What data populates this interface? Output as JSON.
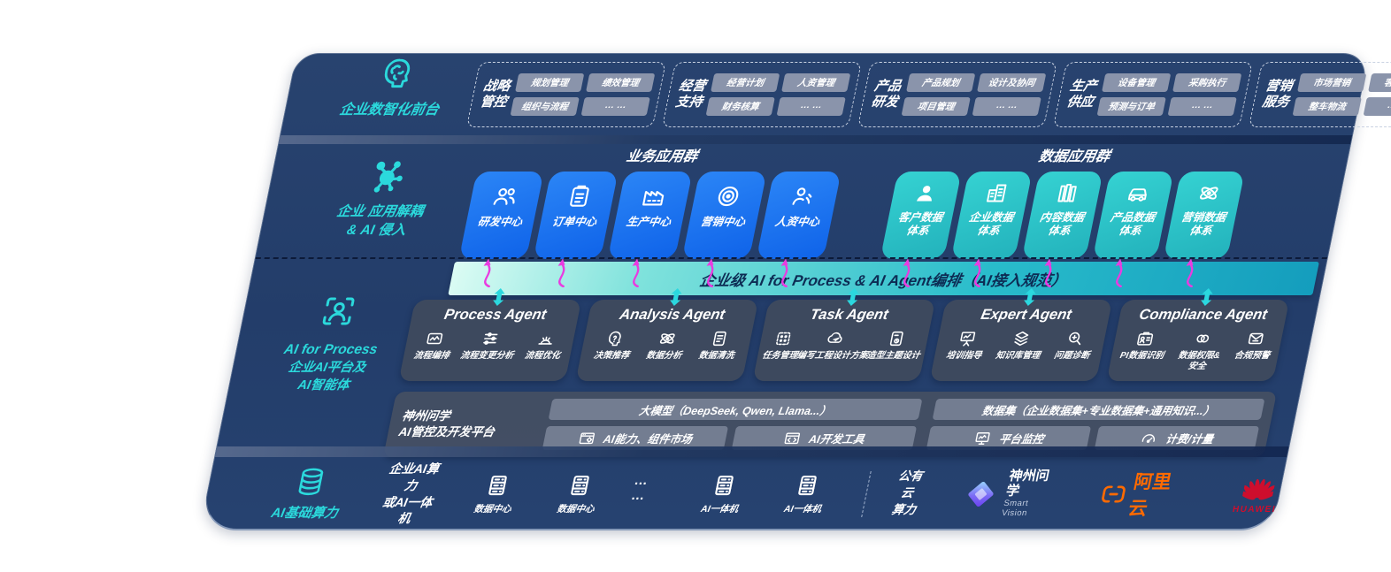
{
  "colors": {
    "panel_navy": "#24406C",
    "accent_teal": "#2BD9DC",
    "tile_blue": "#1B79F3",
    "tile_teal": "#2EC8CA",
    "magenta_arrow": "#E93CE0",
    "bar_gradient_from": "#DCFCF4",
    "bar_gradient_to": "#149DBD",
    "chip_gray": "#8A94AB",
    "aliyun_orange": "#FF6A00",
    "huawei_red": "#CE0E2D"
  },
  "front_office": {
    "label": "企业数智化前台",
    "groups": [
      {
        "title": [
          "战略",
          "管控"
        ],
        "chips": [
          "规划管理",
          "绩效管理",
          "组织与流程",
          "… …"
        ]
      },
      {
        "title": [
          "经营",
          "支持"
        ],
        "chips": [
          "经营计划",
          "人资管理",
          "财务核算",
          "… …"
        ]
      },
      {
        "title": [
          "产品",
          "研发"
        ],
        "chips": [
          "产品规划",
          "设计及协同",
          "项目管理",
          "… …"
        ]
      },
      {
        "title": [
          "生产",
          "供应"
        ],
        "chips": [
          "设备管理",
          "采购执行",
          "预测与订单",
          "… …"
        ]
      },
      {
        "title": [
          "营销",
          "服务"
        ],
        "chips": [
          "市场营销",
          "客户关系",
          "整车物流",
          "… …"
        ]
      }
    ]
  },
  "app_layer": {
    "label_lines": "企业 应用解耦\n& AI 侵入",
    "business": {
      "title": "业务应用群",
      "tiles": [
        {
          "label": "研发中心",
          "icon": "people-icon"
        },
        {
          "label": "订单中心",
          "icon": "clipboard-icon"
        },
        {
          "label": "生产中心",
          "icon": "factory-icon"
        },
        {
          "label": "营销中心",
          "icon": "target-icon"
        },
        {
          "label": "人资中心",
          "icon": "person-wave-icon"
        }
      ]
    },
    "data": {
      "title": "数据应用群",
      "tiles": [
        {
          "label": "客户数据\n体系",
          "icon": "user-icon"
        },
        {
          "label": "企业数据\n体系",
          "icon": "building-icon"
        },
        {
          "label": "内容数据\n体系",
          "icon": "books-icon"
        },
        {
          "label": "产品数据\n体系",
          "icon": "car-icon"
        },
        {
          "label": "营销数据\n体系",
          "icon": "atom-icon"
        }
      ]
    }
  },
  "orchestration_bar": "企业级 AI for Process & AI Agent编排（AI接入规范）",
  "process_layer": {
    "label_en": "AI for Process",
    "label_cn": "企业AI平台及\nAI智能体",
    "agents": [
      {
        "title": "Process Agent",
        "items": [
          {
            "label": "流程编排",
            "icon": "workflow-icon"
          },
          {
            "label": "流程变更分析",
            "icon": "sliders-icon"
          },
          {
            "label": "流程优化",
            "icon": "optimize-icon"
          }
        ]
      },
      {
        "title": "Analysis Agent",
        "items": [
          {
            "label": "决策推荐",
            "icon": "decision-head-icon"
          },
          {
            "label": "数据分析",
            "icon": "atom-icon"
          },
          {
            "label": "数据清洗",
            "icon": "doc-clean-icon"
          }
        ]
      },
      {
        "title": "Task Agent",
        "items": [
          {
            "label": "任务管理",
            "icon": "task-grid-icon"
          },
          {
            "label": "编写工程设计方案",
            "icon": "cloud-edit-icon"
          },
          {
            "label": "造型主题设计",
            "icon": "tablet-design-icon"
          }
        ]
      },
      {
        "title": "Expert Agent",
        "items": [
          {
            "label": "培训指导",
            "icon": "training-icon"
          },
          {
            "label": "知识库管理",
            "icon": "layers-icon"
          },
          {
            "label": "问题诊断",
            "icon": "diagnose-icon"
          }
        ]
      },
      {
        "title": "Compliance Agent",
        "items": [
          {
            "label": "PI数据识别",
            "icon": "id-card-icon"
          },
          {
            "label": "数据权限&\n安全",
            "icon": "link-icon",
            "wrap": true
          },
          {
            "label": "合规预警",
            "icon": "mail-alert-icon"
          }
        ]
      }
    ]
  },
  "platform": {
    "label_lines": "神州问学\nAI管控及开发平台",
    "model_bar": "大模型（DeepSeek, Qwen, Llama...）",
    "dataset_bar": "数据集（企业数据集+专业数据集+通用知识...）",
    "left_cells": [
      {
        "label": "AI能力、组件市场",
        "icon": "app-gear-icon"
      },
      {
        "label": "AI开发工具",
        "icon": "dev-tools-icon"
      }
    ],
    "right_cells": [
      {
        "label": "平台监控",
        "icon": "monitor-icon"
      },
      {
        "label": "计费/计量",
        "icon": "gauge-icon"
      }
    ]
  },
  "infrastructure": {
    "label": "AI基础算力",
    "compute_lines": "企业AI算力\n或AI一体机",
    "servers_left": [
      "数据中心",
      "数据中心"
    ],
    "dots": "… …",
    "servers_right": [
      "AI一体机",
      "AI一体机"
    ],
    "cloud_lines": "公有云\n算力",
    "logos": {
      "smart_vision_name": "神州问学",
      "smart_vision_sub": "Smart Vision",
      "aliyun_name": "阿里云",
      "huawei_name": "HUAWEI"
    }
  }
}
